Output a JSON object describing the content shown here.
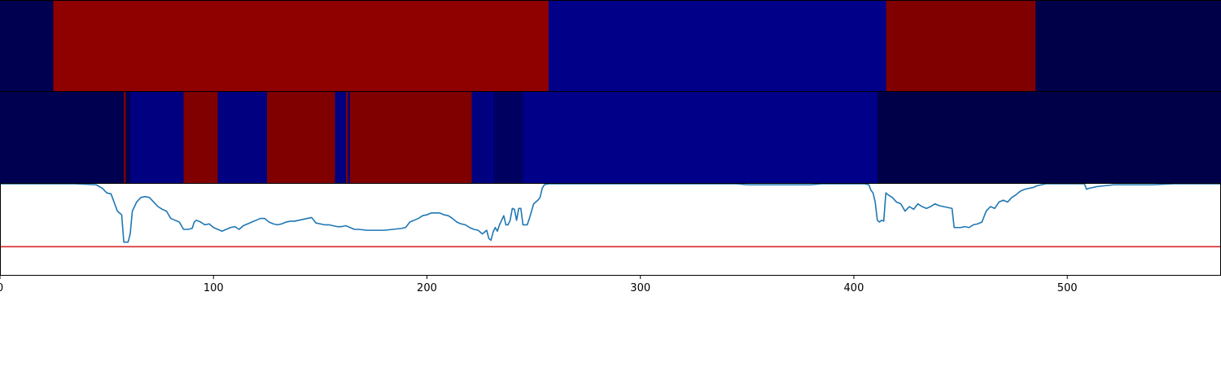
{
  "chart_data": [
    {
      "type": "heatmap",
      "panel": "top-strip",
      "x_range": [
        0,
        572
      ],
      "segments": [
        {
          "start": 0,
          "end": 25,
          "color": "#000050"
        },
        {
          "start": 25,
          "end": 257,
          "color": "#8f0000"
        },
        {
          "start": 257,
          "end": 415,
          "color": "#000088"
        },
        {
          "start": 415,
          "end": 485,
          "color": "#800000"
        },
        {
          "start": 485,
          "end": 572,
          "color": "#000048"
        }
      ]
    },
    {
      "type": "heatmap",
      "panel": "middle-strip",
      "x_range": [
        0,
        572
      ],
      "segments": [
        {
          "start": 0,
          "end": 58,
          "color": "#000050"
        },
        {
          "start": 58,
          "end": 59,
          "color": "#800000"
        },
        {
          "start": 59,
          "end": 61,
          "color": "#000050"
        },
        {
          "start": 61,
          "end": 86,
          "color": "#000080"
        },
        {
          "start": 86,
          "end": 102,
          "color": "#800000"
        },
        {
          "start": 102,
          "end": 125,
          "color": "#000080"
        },
        {
          "start": 125,
          "end": 157,
          "color": "#800000"
        },
        {
          "start": 157,
          "end": 162,
          "color": "#000080"
        },
        {
          "start": 162,
          "end": 163,
          "color": "#800000"
        },
        {
          "start": 163,
          "end": 164,
          "color": "#000080"
        },
        {
          "start": 164,
          "end": 221,
          "color": "#800000"
        },
        {
          "start": 221,
          "end": 230,
          "color": "#000080"
        },
        {
          "start": 230,
          "end": 231,
          "color": "#000090"
        },
        {
          "start": 231,
          "end": 245,
          "color": "#000060"
        },
        {
          "start": 245,
          "end": 411,
          "color": "#000088"
        },
        {
          "start": 411,
          "end": 572,
          "color": "#000048"
        }
      ]
    },
    {
      "type": "line",
      "panel": "line-plot",
      "xlim": [
        0,
        572
      ],
      "ylim": [
        0,
        1
      ],
      "x_ticks": [
        0,
        100,
        200,
        300,
        400,
        500
      ],
      "series": [
        {
          "color": "#1f77b4",
          "points": [
            [
              0,
              1.0
            ],
            [
              35,
              1.0
            ],
            [
              45,
              0.99
            ],
            [
              48,
              0.95
            ],
            [
              50,
              0.9
            ],
            [
              52,
              0.89
            ],
            [
              55,
              0.7
            ],
            [
              57,
              0.66
            ],
            [
              58,
              0.36
            ],
            [
              60,
              0.36
            ],
            [
              61,
              0.45
            ],
            [
              62,
              0.7
            ],
            [
              64,
              0.8
            ],
            [
              66,
              0.85
            ],
            [
              68,
              0.86
            ],
            [
              70,
              0.85
            ],
            [
              72,
              0.8
            ],
            [
              74,
              0.75
            ],
            [
              76,
              0.72
            ],
            [
              78,
              0.7
            ],
            [
              80,
              0.62
            ],
            [
              82,
              0.6
            ],
            [
              84,
              0.58
            ],
            [
              86,
              0.5
            ],
            [
              88,
              0.5
            ],
            [
              90,
              0.51
            ],
            [
              91,
              0.58
            ],
            [
              92,
              0.6
            ],
            [
              94,
              0.58
            ],
            [
              96,
              0.55
            ],
            [
              98,
              0.56
            ],
            [
              100,
              0.52
            ],
            [
              102,
              0.5
            ],
            [
              104,
              0.48
            ],
            [
              106,
              0.5
            ],
            [
              108,
              0.52
            ],
            [
              110,
              0.53
            ],
            [
              112,
              0.5
            ],
            [
              114,
              0.54
            ],
            [
              116,
              0.56
            ],
            [
              118,
              0.58
            ],
            [
              120,
              0.6
            ],
            [
              122,
              0.62
            ],
            [
              124,
              0.62
            ],
            [
              126,
              0.58
            ],
            [
              128,
              0.56
            ],
            [
              130,
              0.55
            ],
            [
              132,
              0.56
            ],
            [
              134,
              0.58
            ],
            [
              136,
              0.59
            ],
            [
              138,
              0.59
            ],
            [
              140,
              0.6
            ],
            [
              142,
              0.61
            ],
            [
              144,
              0.62
            ],
            [
              146,
              0.63
            ],
            [
              148,
              0.57
            ],
            [
              150,
              0.56
            ],
            [
              152,
              0.55
            ],
            [
              154,
              0.55
            ],
            [
              156,
              0.54
            ],
            [
              158,
              0.53
            ],
            [
              160,
              0.53
            ],
            [
              162,
              0.54
            ],
            [
              164,
              0.52
            ],
            [
              166,
              0.5
            ],
            [
              168,
              0.5
            ],
            [
              172,
              0.49
            ],
            [
              176,
              0.49
            ],
            [
              180,
              0.49
            ],
            [
              184,
              0.5
            ],
            [
              188,
              0.51
            ],
            [
              190,
              0.52
            ],
            [
              192,
              0.58
            ],
            [
              194,
              0.6
            ],
            [
              196,
              0.62
            ],
            [
              198,
              0.65
            ],
            [
              200,
              0.66
            ],
            [
              202,
              0.68
            ],
            [
              206,
              0.68
            ],
            [
              208,
              0.66
            ],
            [
              210,
              0.65
            ],
            [
              212,
              0.62
            ],
            [
              214,
              0.58
            ],
            [
              216,
              0.56
            ],
            [
              218,
              0.55
            ],
            [
              220,
              0.52
            ],
            [
              222,
              0.5
            ],
            [
              224,
              0.49
            ],
            [
              226,
              0.45
            ],
            [
              228,
              0.49
            ],
            [
              229,
              0.4
            ],
            [
              230,
              0.38
            ],
            [
              231,
              0.47
            ],
            [
              232,
              0.52
            ],
            [
              233,
              0.48
            ],
            [
              234,
              0.55
            ],
            [
              235,
              0.6
            ],
            [
              236,
              0.65
            ],
            [
              237,
              0.55
            ],
            [
              238,
              0.55
            ],
            [
              239,
              0.6
            ],
            [
              240,
              0.73
            ],
            [
              241,
              0.72
            ],
            [
              242,
              0.6
            ],
            [
              243,
              0.73
            ],
            [
              244,
              0.73
            ],
            [
              245,
              0.55
            ],
            [
              247,
              0.55
            ],
            [
              248,
              0.62
            ],
            [
              249,
              0.7
            ],
            [
              250,
              0.78
            ],
            [
              252,
              0.82
            ],
            [
              253,
              0.85
            ],
            [
              254,
              0.95
            ],
            [
              255,
              0.99
            ],
            [
              257,
              1.0
            ],
            [
              345,
              1.0
            ],
            [
              350,
              0.99
            ],
            [
              380,
              0.99
            ],
            [
              385,
              1.0
            ],
            [
              405,
              1.0
            ],
            [
              407,
              0.99
            ],
            [
              408,
              0.93
            ],
            [
              409,
              0.9
            ],
            [
              410,
              0.8
            ],
            [
              411,
              0.6
            ],
            [
              412,
              0.58
            ],
            [
              413,
              0.6
            ],
            [
              414,
              0.59
            ],
            [
              415,
              0.9
            ],
            [
              416,
              0.88
            ],
            [
              418,
              0.85
            ],
            [
              420,
              0.8
            ],
            [
              422,
              0.78
            ],
            [
              424,
              0.7
            ],
            [
              426,
              0.75
            ],
            [
              428,
              0.72
            ],
            [
              430,
              0.78
            ],
            [
              432,
              0.75
            ],
            [
              434,
              0.73
            ],
            [
              436,
              0.75
            ],
            [
              438,
              0.78
            ],
            [
              440,
              0.76
            ],
            [
              442,
              0.75
            ],
            [
              444,
              0.74
            ],
            [
              446,
              0.73
            ],
            [
              447,
              0.52
            ],
            [
              448,
              0.52
            ],
            [
              450,
              0.52
            ],
            [
              452,
              0.53
            ],
            [
              454,
              0.52
            ],
            [
              456,
              0.55
            ],
            [
              458,
              0.56
            ],
            [
              460,
              0.58
            ],
            [
              462,
              0.7
            ],
            [
              464,
              0.75
            ],
            [
              466,
              0.73
            ],
            [
              468,
              0.8
            ],
            [
              470,
              0.82
            ],
            [
              472,
              0.8
            ],
            [
              474,
              0.85
            ],
            [
              476,
              0.88
            ],
            [
              478,
              0.92
            ],
            [
              480,
              0.94
            ],
            [
              482,
              0.95
            ],
            [
              484,
              0.96
            ],
            [
              486,
              0.98
            ],
            [
              488,
              0.99
            ],
            [
              490,
              1.0
            ],
            [
              500,
              1.0
            ],
            [
              508,
              1.0
            ],
            [
              509,
              0.94
            ],
            [
              510,
              0.95
            ],
            [
              512,
              0.96
            ],
            [
              514,
              0.97
            ],
            [
              518,
              0.98
            ],
            [
              522,
              0.99
            ],
            [
              530,
              0.99
            ],
            [
              540,
              0.99
            ],
            [
              550,
              1.0
            ],
            [
              572,
              1.0
            ]
          ]
        }
      ],
      "hlines": [
        {
          "y": 0.31,
          "color": "#d62728"
        }
      ]
    }
  ]
}
